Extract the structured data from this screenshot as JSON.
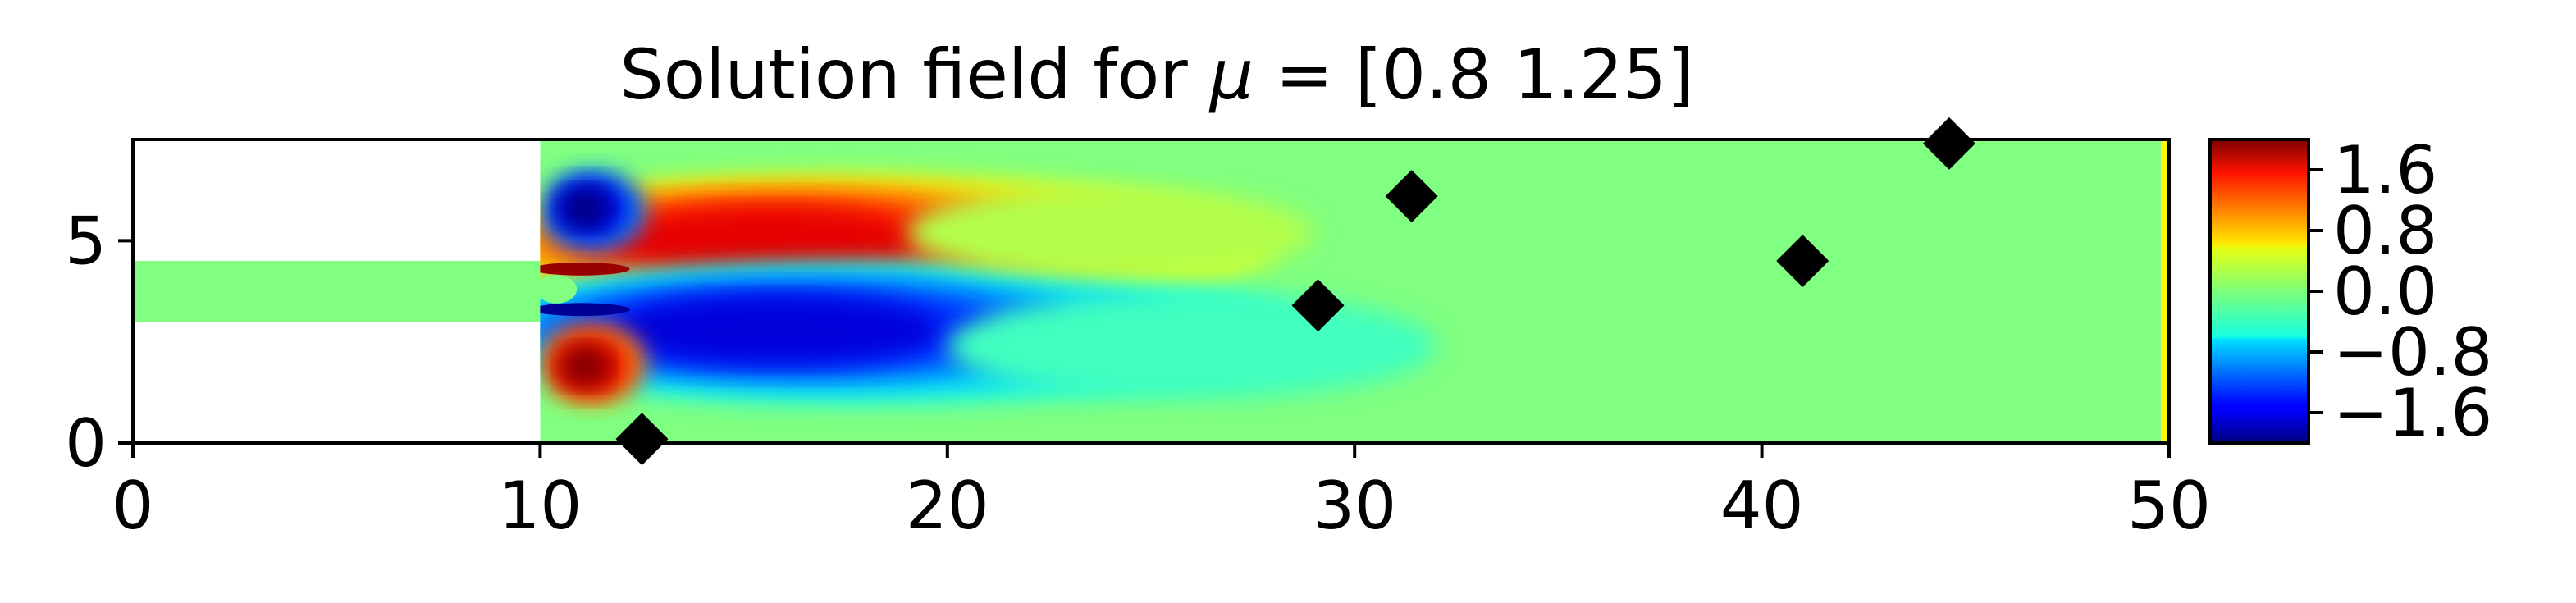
{
  "chart_data": {
    "type": "heatmap",
    "title_prefix": "Solution field for ",
    "title_symbol": "μ",
    "title_suffix": " = [0.8  1.25]",
    "colormap": "jet",
    "xlim": [
      0,
      50
    ],
    "ylim": [
      0,
      7.5
    ],
    "x_ticks": [
      0,
      10,
      20,
      30,
      40,
      50
    ],
    "x_tick_labels": [
      "0",
      "10",
      "20",
      "30",
      "40",
      "50"
    ],
    "y_ticks": [
      0,
      5
    ],
    "y_tick_labels": [
      "0",
      "5"
    ],
    "colorbar": {
      "range": [
        -2.0,
        2.0
      ],
      "ticks": [
        1.6,
        0.8,
        0.0,
        -0.8,
        -1.6
      ],
      "tick_labels": [
        "1.6",
        "0.8",
        "0.0",
        "−0.8",
        "−1.6"
      ]
    },
    "domain": {
      "inlet_channel": {
        "x": [
          0,
          10
        ],
        "y": [
          3.0,
          4.5
        ]
      },
      "main_chamber": {
        "x": [
          10,
          50
        ],
        "y": [
          0,
          7.5
        ]
      }
    },
    "features": [
      {
        "name": "upper-jet-lobe",
        "x": 16,
        "y": 5.0,
        "value": 1.6
      },
      {
        "name": "lower-jet-lobe",
        "x": 16,
        "y": 2.8,
        "value": -1.6
      },
      {
        "name": "upper-corner-vortex",
        "x": 11.2,
        "y": 5.8,
        "value": -2.0
      },
      {
        "name": "lower-corner-vortex",
        "x": 11.2,
        "y": 1.9,
        "value": 2.0
      },
      {
        "name": "thin-upper-shear",
        "x": 10.6,
        "y": 4.3,
        "value": 2.0
      },
      {
        "name": "thin-lower-shear",
        "x": 10.6,
        "y": 3.3,
        "value": -2.0
      }
    ],
    "sensors": [
      {
        "x": 12.5,
        "y": 0.1
      },
      {
        "x": 29.1,
        "y": 3.4
      },
      {
        "x": 31.4,
        "y": 6.1
      },
      {
        "x": 41.0,
        "y": 4.5
      },
      {
        "x": 44.6,
        "y": 7.4
      }
    ]
  }
}
